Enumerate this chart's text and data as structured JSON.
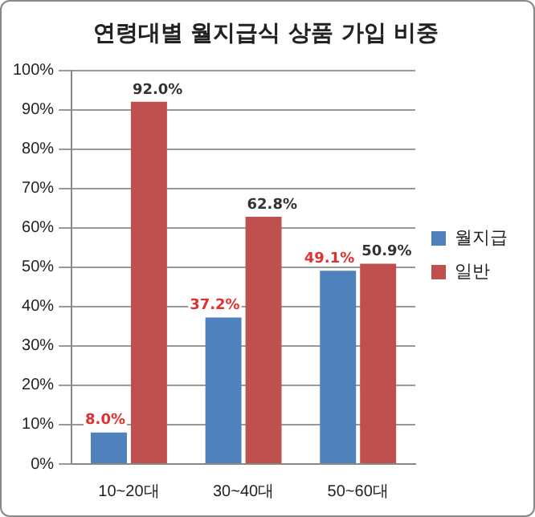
{
  "chart_data": {
    "type": "bar",
    "title": "연령대별 월지급식 상품 가입 비중",
    "categories": [
      "10~20대",
      "30~40대",
      "50~60대"
    ],
    "series": [
      {
        "name": "월지급",
        "color": "#4f81bd",
        "values": [
          8,
          37.2,
          49.1
        ],
        "value_labels": [
          "8.0%",
          "37.2%",
          "49.1%"
        ]
      },
      {
        "name": "일반",
        "color": "#c0504d",
        "values": [
          92,
          62.8,
          50.9
        ],
        "value_labels": [
          "92.0%",
          "62.8%",
          "50.9%"
        ]
      }
    ],
    "ylim": [
      0,
      100
    ],
    "yticks": [
      {
        "value": 0,
        "label": "0%"
      },
      {
        "value": 10,
        "label": "10%"
      },
      {
        "value": 20,
        "label": "20%"
      },
      {
        "value": 30,
        "label": "30%"
      },
      {
        "value": 40,
        "label": "40%"
      },
      {
        "value": 50,
        "label": "50%"
      },
      {
        "value": 60,
        "label": "60%"
      },
      {
        "value": 70,
        "label": "70%"
      },
      {
        "value": 80,
        "label": "80%"
      },
      {
        "value": 90,
        "label": "90%"
      },
      {
        "value": 100,
        "label": "100%"
      }
    ],
    "grid": "y",
    "legend": "right"
  }
}
